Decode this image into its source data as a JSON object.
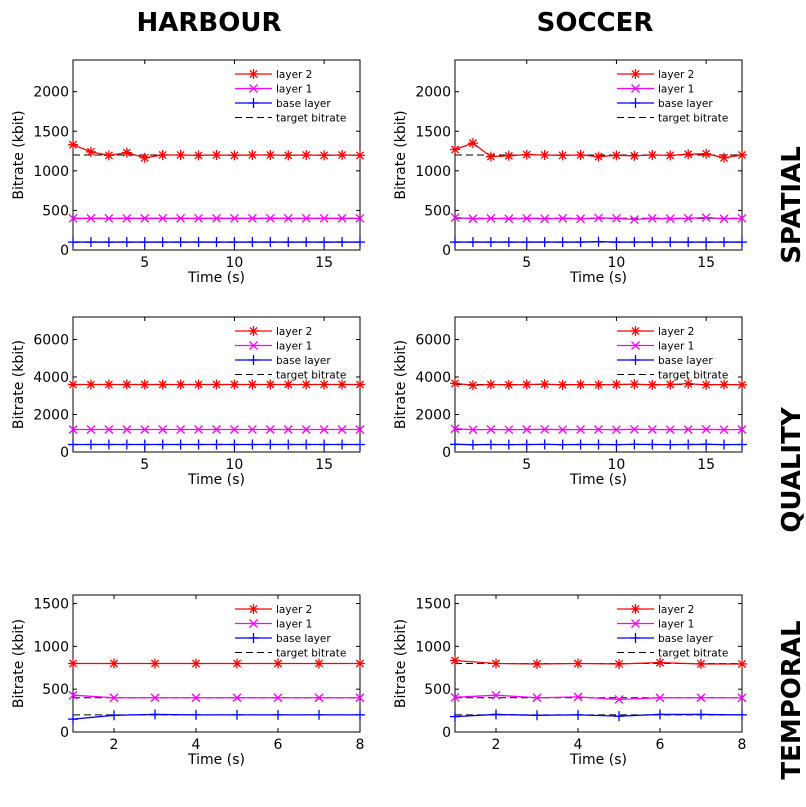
{
  "figure": {
    "column_titles": [
      "HARBOUR",
      "SOCCER"
    ],
    "row_titles": [
      "SPATIAL",
      "QUALITY",
      "TEMPORAL"
    ]
  },
  "colors": {
    "layer2": "#ff0000",
    "layer1": "#ff00ff",
    "base": "#0000ff",
    "target": "#000000"
  },
  "chart_data": [
    {
      "id": "spatial-harbour",
      "type": "line",
      "row": 0,
      "col": 0,
      "xlabel": "Time (s)",
      "ylabel": "Bitrate (kbit)",
      "xlim": [
        1,
        17
      ],
      "ylim": [
        0,
        2400
      ],
      "xticks": [
        5,
        10,
        15
      ],
      "yticks": [
        0,
        500,
        1000,
        1500,
        2000
      ],
      "legend": "top-right",
      "x": [
        1,
        2,
        3,
        4,
        5,
        6,
        7,
        8,
        9,
        10,
        11,
        12,
        13,
        14,
        15,
        16,
        17
      ],
      "series": [
        {
          "name": "layer 2",
          "marker": "star",
          "color": "#ff0000",
          "values": [
            1330,
            1240,
            1195,
            1230,
            1165,
            1200,
            1200,
            1195,
            1200,
            1195,
            1200,
            1200,
            1195,
            1200,
            1195,
            1200,
            1195
          ]
        },
        {
          "name": "layer 1",
          "marker": "x",
          "color": "#ff00ff",
          "values": [
            400,
            400,
            400,
            400,
            400,
            400,
            400,
            400,
            400,
            400,
            400,
            400,
            400,
            400,
            400,
            400,
            400
          ]
        },
        {
          "name": "base layer",
          "marker": "plus",
          "color": "#0000ff",
          "values": [
            100,
            100,
            100,
            100,
            100,
            100,
            100,
            100,
            100,
            100,
            100,
            100,
            100,
            100,
            100,
            100,
            100
          ]
        },
        {
          "name": "target bitrate",
          "dashed": true,
          "targets": [
            1200,
            400,
            100
          ]
        }
      ]
    },
    {
      "id": "spatial-soccer",
      "type": "line",
      "row": 0,
      "col": 1,
      "xlabel": "Time (s)",
      "ylabel": "Bitrate (kbit)",
      "xlim": [
        1,
        17
      ],
      "ylim": [
        0,
        2400
      ],
      "xticks": [
        5,
        10,
        15
      ],
      "yticks": [
        0,
        500,
        1000,
        1500,
        2000
      ],
      "legend": "top-right",
      "x": [
        1,
        2,
        3,
        4,
        5,
        6,
        7,
        8,
        9,
        10,
        11,
        12,
        13,
        14,
        15,
        16,
        17
      ],
      "series": [
        {
          "name": "layer 2",
          "marker": "star",
          "color": "#ff0000",
          "values": [
            1270,
            1350,
            1180,
            1190,
            1205,
            1200,
            1195,
            1200,
            1180,
            1195,
            1190,
            1200,
            1195,
            1210,
            1215,
            1165,
            1200
          ]
        },
        {
          "name": "layer 1",
          "marker": "x",
          "color": "#ff00ff",
          "values": [
            410,
            395,
            400,
            395,
            400,
            395,
            400,
            395,
            405,
            400,
            385,
            400,
            395,
            400,
            410,
            395,
            400
          ]
        },
        {
          "name": "base layer",
          "marker": "plus",
          "color": "#0000ff",
          "values": [
            100,
            100,
            100,
            100,
            100,
            100,
            100,
            100,
            105,
            100,
            100,
            100,
            100,
            100,
            100,
            100,
            100
          ]
        },
        {
          "name": "target bitrate",
          "dashed": true,
          "targets": [
            1200,
            400,
            100
          ]
        }
      ]
    },
    {
      "id": "quality-harbour",
      "type": "line",
      "row": 1,
      "col": 0,
      "xlabel": "Time (s)",
      "ylabel": "Bitrate (kbit)",
      "xlim": [
        1,
        17
      ],
      "ylim": [
        0,
        7200
      ],
      "xticks": [
        5,
        10,
        15
      ],
      "yticks": [
        0,
        2000,
        4000,
        6000
      ],
      "legend": "top-right",
      "x": [
        1,
        2,
        3,
        4,
        5,
        6,
        7,
        8,
        9,
        10,
        11,
        12,
        13,
        14,
        15,
        16,
        17
      ],
      "series": [
        {
          "name": "layer 2",
          "marker": "star",
          "color": "#ff0000",
          "values": [
            3600,
            3600,
            3600,
            3600,
            3600,
            3600,
            3600,
            3600,
            3600,
            3600,
            3600,
            3600,
            3600,
            3600,
            3600,
            3600,
            3600
          ]
        },
        {
          "name": "layer 1",
          "marker": "x",
          "color": "#ff00ff",
          "values": [
            1200,
            1200,
            1200,
            1200,
            1200,
            1200,
            1200,
            1200,
            1200,
            1200,
            1200,
            1200,
            1200,
            1200,
            1200,
            1200,
            1200
          ]
        },
        {
          "name": "base layer",
          "marker": "plus",
          "color": "#0000ff",
          "values": [
            400,
            400,
            400,
            400,
            400,
            400,
            400,
            400,
            400,
            400,
            400,
            400,
            400,
            400,
            400,
            400,
            400
          ]
        },
        {
          "name": "target bitrate",
          "dashed": true,
          "targets": [
            3600,
            1200,
            400
          ]
        }
      ]
    },
    {
      "id": "quality-soccer",
      "type": "line",
      "row": 1,
      "col": 1,
      "xlabel": "Time (s)",
      "ylabel": "Bitrate (kbit)",
      "xlim": [
        1,
        17
      ],
      "ylim": [
        0,
        7200
      ],
      "xticks": [
        5,
        10,
        15
      ],
      "yticks": [
        0,
        2000,
        4000,
        6000
      ],
      "legend": "top-right",
      "x": [
        1,
        2,
        3,
        4,
        5,
        6,
        7,
        8,
        9,
        10,
        11,
        12,
        13,
        14,
        15,
        16,
        17
      ],
      "series": [
        {
          "name": "layer 2",
          "marker": "star",
          "color": "#ff0000",
          "values": [
            3660,
            3560,
            3600,
            3580,
            3600,
            3620,
            3580,
            3600,
            3580,
            3600,
            3620,
            3580,
            3600,
            3640,
            3580,
            3600,
            3580
          ]
        },
        {
          "name": "layer 1",
          "marker": "x",
          "color": "#ff00ff",
          "values": [
            1240,
            1190,
            1200,
            1190,
            1200,
            1210,
            1190,
            1200,
            1200,
            1190,
            1210,
            1200,
            1190,
            1200,
            1210,
            1190,
            1200
          ]
        },
        {
          "name": "base layer",
          "marker": "plus",
          "color": "#0000ff",
          "values": [
            410,
            390,
            400,
            395,
            400,
            405,
            395,
            400,
            400,
            395,
            405,
            400,
            395,
            400,
            410,
            395,
            400
          ]
        },
        {
          "name": "target bitrate",
          "dashed": true,
          "targets": [
            3600,
            1200,
            400
          ]
        }
      ]
    },
    {
      "id": "temporal-harbour",
      "type": "line",
      "row": 2,
      "col": 0,
      "xlabel": "Time (s)",
      "ylabel": "Bitrate (kbit)",
      "xlim": [
        1,
        8
      ],
      "ylim": [
        0,
        1600
      ],
      "xticks": [
        2,
        4,
        6,
        8
      ],
      "yticks": [
        0,
        500,
        1000,
        1500
      ],
      "legend": "top-right",
      "x": [
        1,
        2,
        3,
        4,
        5,
        6,
        7,
        8
      ],
      "series": [
        {
          "name": "layer 2",
          "marker": "star",
          "color": "#ff0000",
          "values": [
            800,
            800,
            800,
            800,
            800,
            800,
            800,
            800
          ]
        },
        {
          "name": "layer 1",
          "marker": "x",
          "color": "#ff00ff",
          "values": [
            430,
            400,
            400,
            400,
            400,
            400,
            400,
            400
          ]
        },
        {
          "name": "base layer",
          "marker": "plus",
          "color": "#0000ff",
          "values": [
            150,
            195,
            205,
            200,
            200,
            200,
            200,
            200
          ]
        },
        {
          "name": "target bitrate",
          "dashed": true,
          "targets": [
            800,
            400,
            200
          ]
        }
      ]
    },
    {
      "id": "temporal-soccer",
      "type": "line",
      "row": 2,
      "col": 1,
      "xlabel": "Time (s)",
      "ylabel": "Bitrate (kbit)",
      "xlim": [
        1,
        8
      ],
      "ylim": [
        0,
        1600
      ],
      "xticks": [
        2,
        4,
        6,
        8
      ],
      "yticks": [
        0,
        500,
        1000,
        1500
      ],
      "legend": "top-right",
      "x": [
        1,
        2,
        3,
        4,
        5,
        6,
        7,
        8
      ],
      "series": [
        {
          "name": "layer 2",
          "marker": "star",
          "color": "#ff0000",
          "values": [
            835,
            800,
            795,
            800,
            795,
            810,
            795,
            795
          ]
        },
        {
          "name": "layer 1",
          "marker": "x",
          "color": "#ff00ff",
          "values": [
            405,
            430,
            400,
            410,
            380,
            400,
            400,
            400
          ]
        },
        {
          "name": "base layer",
          "marker": "plus",
          "color": "#0000ff",
          "values": [
            180,
            205,
            195,
            200,
            185,
            205,
            205,
            200
          ]
        },
        {
          "name": "target bitrate",
          "dashed": true,
          "targets": [
            800,
            400,
            200
          ]
        }
      ]
    }
  ]
}
